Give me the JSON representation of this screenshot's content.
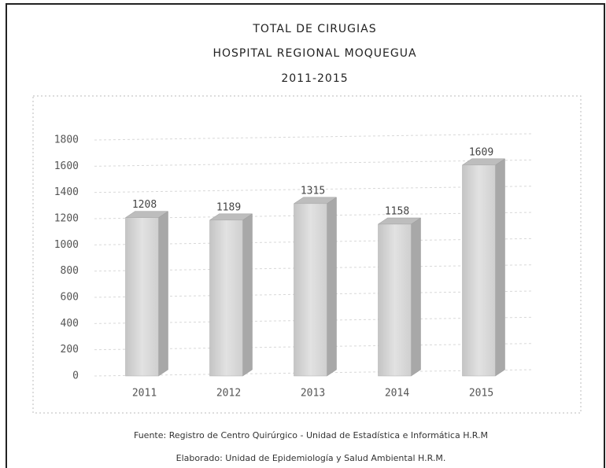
{
  "chart_data": {
    "type": "bar",
    "title": "TOTAL DE CIRUGIAS",
    "subtitle": [
      "HOSPITAL REGIONAL MOQUEGUA",
      "2011-2015"
    ],
    "categories": [
      "2011",
      "2012",
      "2013",
      "2014",
      "2015"
    ],
    "values": [
      1208,
      1189,
      1315,
      1158,
      1609
    ],
    "color": "#d0d0d0",
    "ylim": [
      0,
      1800
    ],
    "yticks": [
      0,
      200,
      400,
      600,
      800,
      1000,
      1200,
      1400,
      1600,
      1800
    ],
    "grid": true,
    "notes": [
      "Fuente: Registro de Centro Quirúrgico - Unidad de Estadística e Informática H.R.M",
      "Elaborado: Unidad de Epidemiología y Salud Ambiental H.R.M."
    ]
  }
}
